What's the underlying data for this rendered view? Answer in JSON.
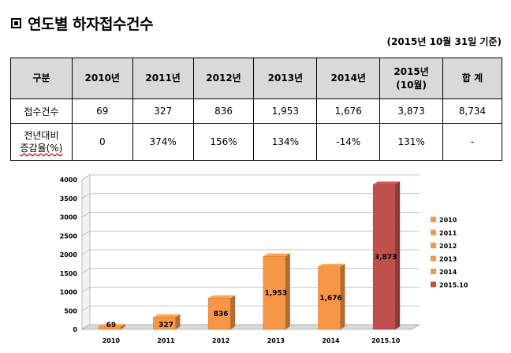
{
  "title": "연도별 하자접수건수",
  "as_of": "(2015년 10월 31일 기준)",
  "table": {
    "header": [
      "구분",
      "2010년",
      "2011년",
      "2012년",
      "2013년",
      "2014년",
      "2015년",
      "(10월)",
      "합 계"
    ],
    "row1": [
      "접수건수",
      "69",
      "327",
      "836",
      "1,953",
      "1,676",
      "3,873",
      "8,734"
    ],
    "row2": [
      "전년대비",
      "증감율(%)",
      "0",
      "374%",
      "156%",
      "134%",
      "-14%",
      "131%",
      "-"
    ]
  },
  "chart_data": {
    "type": "bar",
    "categories": [
      "2010",
      "2011",
      "2012",
      "2013",
      "2014",
      "2015.10"
    ],
    "values": [
      69,
      327,
      836,
      1953,
      1676,
      3873
    ],
    "data_labels": [
      "69",
      "327",
      "836",
      "1,953",
      "1,676",
      "3,873"
    ],
    "series": [
      {
        "name": "2010",
        "color": "#f79646"
      },
      {
        "name": "2011",
        "color": "#f79646"
      },
      {
        "name": "2012",
        "color": "#f79646"
      },
      {
        "name": "2013",
        "color": "#f79646"
      },
      {
        "name": "2014",
        "color": "#f79646"
      },
      {
        "name": "2015.10",
        "color": "#c0504d"
      }
    ],
    "ylim": [
      0,
      4000
    ],
    "yticks": [
      "0",
      "500",
      "1000",
      "1500",
      "2000",
      "2500",
      "3000",
      "3500",
      "4000"
    ],
    "grid": true,
    "legend_position": "right",
    "bar_style": "3d"
  }
}
